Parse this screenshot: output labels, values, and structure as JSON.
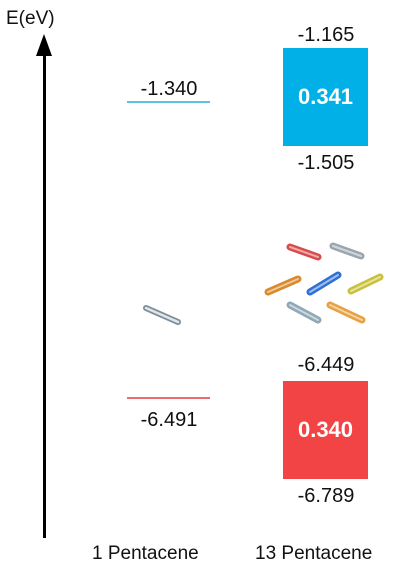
{
  "axis": {
    "title": "E(eV)"
  },
  "columns": [
    {
      "label": "1 Pentacene",
      "lumo": {
        "value": "-1.340",
        "color": "#5bc1ea"
      },
      "homo": {
        "value": "-6.491",
        "color": "#ef6b6b"
      }
    },
    {
      "label": "13 Pentacene",
      "lumo_band": {
        "top": "-1.165",
        "bottom": "-1.505",
        "width": "0.341",
        "color": "#00b0e6"
      },
      "homo_band": {
        "top": "-6.449",
        "bottom": "-6.789",
        "width": "0.340",
        "color": "#f24444"
      }
    }
  ],
  "molecule_colors": [
    "#d94b4b",
    "#9aa5ad",
    "#d98a2b",
    "#2f6fd6",
    "#c9c13a",
    "#e8a040",
    "#8fa8b5"
  ]
}
